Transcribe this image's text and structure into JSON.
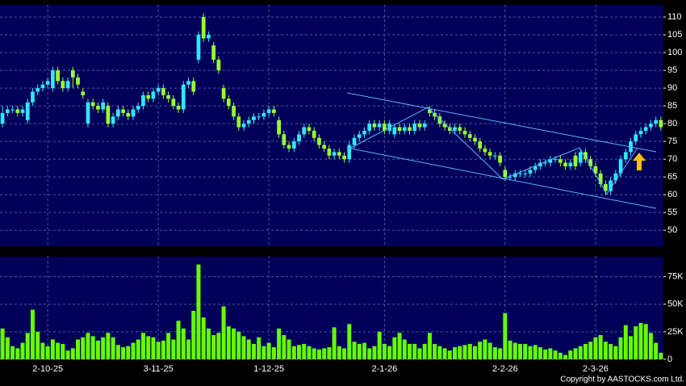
{
  "chart_data": [
    {
      "type": "candlestick",
      "up_color": "#33e6ff",
      "down_color": "#99ff33",
      "grid": true,
      "axis_side": "right",
      "ylim": [
        45.5,
        113.2
      ],
      "yticks": [
        50,
        55,
        60,
        65,
        70,
        75,
        80,
        85,
        90,
        95,
        100,
        105,
        110
      ],
      "open": [
        80,
        83,
        84,
        84,
        83,
        81,
        86,
        89,
        90,
        91,
        90,
        95,
        92,
        90,
        95,
        93,
        89,
        80,
        86,
        85,
        84,
        85,
        80,
        82,
        84,
        83,
        82,
        84,
        85,
        88,
        87,
        89,
        90,
        88,
        87,
        85,
        84,
        91,
        92,
        98,
        110,
        104,
        102,
        98,
        90,
        87,
        85,
        82,
        79,
        80,
        81,
        82,
        82,
        83,
        84,
        81,
        77,
        74,
        73,
        75,
        77,
        79,
        78,
        76,
        74,
        73,
        71,
        72,
        71,
        70,
        74,
        76,
        77,
        78,
        80,
        79,
        80,
        78,
        77,
        79,
        78,
        79,
        78,
        80,
        79,
        84,
        83,
        82,
        80,
        79,
        78,
        79,
        78,
        77,
        76,
        75,
        73,
        72,
        71,
        71,
        67,
        65,
        65,
        66,
        66,
        66,
        67,
        68,
        69,
        69,
        70,
        70,
        69,
        68,
        71,
        69,
        72,
        70,
        68,
        66,
        63,
        61,
        64,
        66,
        70,
        72,
        75,
        77,
        78,
        79,
        80,
        81
      ],
      "high": [
        85,
        85,
        85,
        85,
        85,
        87,
        90,
        91,
        92,
        93,
        96,
        96,
        93,
        93,
        96,
        94,
        90,
        87,
        87,
        86,
        87,
        86,
        83,
        85,
        85,
        84,
        85,
        86,
        89,
        89,
        90,
        91,
        91,
        89,
        88,
        86,
        92,
        93,
        93,
        106,
        111,
        106,
        103,
        99,
        91,
        88,
        86,
        83,
        81,
        82,
        83,
        83,
        84,
        85,
        85,
        82,
        78,
        75,
        76,
        78,
        80,
        80,
        79,
        77,
        75,
        74,
        73,
        73,
        72,
        75,
        77,
        78,
        79,
        81,
        81,
        81,
        81,
        81,
        80,
        80,
        80,
        80,
        81,
        81,
        81,
        85,
        84,
        83,
        81,
        80,
        80,
        80,
        79,
        78,
        77,
        76,
        74,
        73,
        72,
        72,
        68,
        66,
        67,
        67,
        67,
        68,
        69,
        70,
        70,
        71,
        71,
        71,
        70,
        70,
        72,
        73,
        73,
        71,
        69,
        67,
        64,
        65,
        67,
        71,
        73,
        76,
        78,
        79,
        80,
        81,
        82,
        82
      ],
      "low": [
        79,
        82,
        83,
        82,
        82,
        80,
        85,
        88,
        89,
        90,
        89,
        91,
        89,
        89,
        90,
        90,
        87,
        79,
        84,
        83,
        83,
        79,
        79,
        81,
        82,
        81,
        81,
        83,
        84,
        86,
        86,
        88,
        87,
        86,
        84,
        83,
        83,
        90,
        88,
        97,
        103,
        103,
        97,
        94,
        86,
        84,
        81,
        78,
        78,
        79,
        80,
        81,
        81,
        82,
        82,
        76,
        73,
        72,
        72,
        74,
        76,
        77,
        75,
        73,
        72,
        70,
        70,
        70,
        69,
        69,
        73,
        75,
        76,
        77,
        78,
        78,
        77,
        77,
        76,
        77,
        77,
        77,
        77,
        78,
        78,
        82,
        81,
        79,
        78,
        77,
        77,
        77,
        76,
        75,
        74,
        72,
        71,
        70,
        70,
        68,
        64,
        64,
        64,
        65,
        65,
        65,
        66,
        67,
        68,
        68,
        69,
        68,
        67,
        67,
        67,
        68,
        69,
        67,
        65,
        62,
        60,
        60,
        63,
        65,
        69,
        71,
        74,
        76,
        77,
        78,
        79,
        78
      ],
      "close": [
        83,
        84,
        84,
        83,
        84,
        86,
        89,
        90,
        91,
        92,
        95,
        92,
        90,
        92,
        93,
        91,
        88,
        86,
        85,
        84,
        86,
        80,
        82,
        84,
        83,
        82,
        84,
        85,
        88,
        87,
        89,
        90,
        88,
        87,
        85,
        84,
        91,
        92,
        89,
        105,
        104,
        105,
        98,
        95,
        87,
        85,
        82,
        79,
        80,
        81,
        82,
        82,
        83,
        84,
        83,
        77,
        74,
        73,
        75,
        77,
        79,
        78,
        76,
        74,
        73,
        71,
        72,
        71,
        70,
        74,
        76,
        77,
        78,
        80,
        79,
        80,
        78,
        80,
        79,
        78,
        79,
        78,
        80,
        79,
        80,
        83,
        82,
        80,
        79,
        78,
        79,
        78,
        77,
        76,
        75,
        73,
        72,
        71,
        71,
        69,
        65,
        65,
        66,
        66,
        66,
        67,
        68,
        69,
        69,
        70,
        70,
        69,
        68,
        69,
        68,
        72,
        70,
        68,
        66,
        63,
        61,
        64,
        66,
        70,
        72,
        75,
        77,
        78,
        79,
        80,
        81,
        79
      ]
    },
    {
      "type": "bar",
      "color": "#66ff00",
      "grid": true,
      "axis_side": "right",
      "ylim": [
        0,
        93000
      ],
      "yticks": [
        0,
        {
          "value": 25000,
          "label": "25K"
        },
        {
          "value": 50000,
          "label": "50K"
        },
        {
          "value": 75000,
          "label": "75K"
        }
      ],
      "categories": [
        null,
        null,
        null,
        null,
        null,
        null,
        null,
        null,
        null,
        "2-10-25",
        null,
        null,
        null,
        null,
        null,
        null,
        null,
        null,
        null,
        null,
        null,
        null,
        null,
        null,
        null,
        null,
        null,
        null,
        null,
        null,
        null,
        "3-11-25",
        null,
        null,
        null,
        null,
        null,
        null,
        null,
        null,
        null,
        null,
        null,
        null,
        null,
        null,
        null,
        null,
        null,
        null,
        null,
        null,
        null,
        "1-12-25",
        null,
        null,
        null,
        null,
        null,
        null,
        null,
        null,
        null,
        null,
        null,
        null,
        null,
        null,
        null,
        null,
        null,
        null,
        null,
        null,
        null,
        null,
        "2-1-26",
        null,
        null,
        null,
        null,
        null,
        null,
        null,
        null,
        null,
        null,
        null,
        null,
        null,
        null,
        null,
        null,
        null,
        null,
        null,
        null,
        null,
        null,
        null,
        "2-2-26",
        null,
        null,
        null,
        null,
        null,
        null,
        null,
        null,
        null,
        null,
        null,
        null,
        null,
        null,
        null,
        null,
        null,
        "2-3-26",
        null,
        null,
        null,
        null,
        null,
        null,
        null,
        null,
        null,
        null,
        null,
        null,
        null
      ],
      "values": [
        28000,
        20000,
        12000,
        10000,
        15000,
        24000,
        45000,
        25000,
        15000,
        12000,
        18000,
        15000,
        14000,
        8000,
        10000,
        18000,
        20000,
        24000,
        21000,
        17000,
        20000,
        24000,
        20000,
        13000,
        11000,
        12000,
        15000,
        18000,
        24000,
        21000,
        20000,
        16000,
        17000,
        24000,
        18000,
        35000,
        28000,
        18000,
        44000,
        86000,
        38000,
        28000,
        22000,
        24000,
        48000,
        30000,
        28000,
        25000,
        21000,
        18000,
        14000,
        20000,
        12000,
        15000,
        11000,
        28000,
        22000,
        18000,
        12000,
        13000,
        14000,
        12000,
        10000,
        9000,
        10000,
        11000,
        29000,
        12000,
        10000,
        32000,
        16000,
        14000,
        15000,
        10000,
        12000,
        25000,
        14000,
        12000,
        20000,
        24000,
        18000,
        14000,
        14000,
        10000,
        14000,
        24000,
        14000,
        12000,
        10000,
        8000,
        11000,
        12000,
        13000,
        14000,
        12000,
        16000,
        18000,
        15000,
        11000,
        10000,
        42000,
        17000,
        15000,
        14000,
        14000,
        12000,
        13000,
        11000,
        9000,
        10000,
        8000,
        6000,
        4000,
        8000,
        10000,
        12000,
        14000,
        16000,
        20000,
        22000,
        16000,
        14000,
        12000,
        20000,
        31000,
        21000,
        30000,
        33000,
        32000,
        24000,
        15000,
        6000
      ]
    }
  ],
  "copyright": "Copyright by AASTOCKS.com Ltd."
}
